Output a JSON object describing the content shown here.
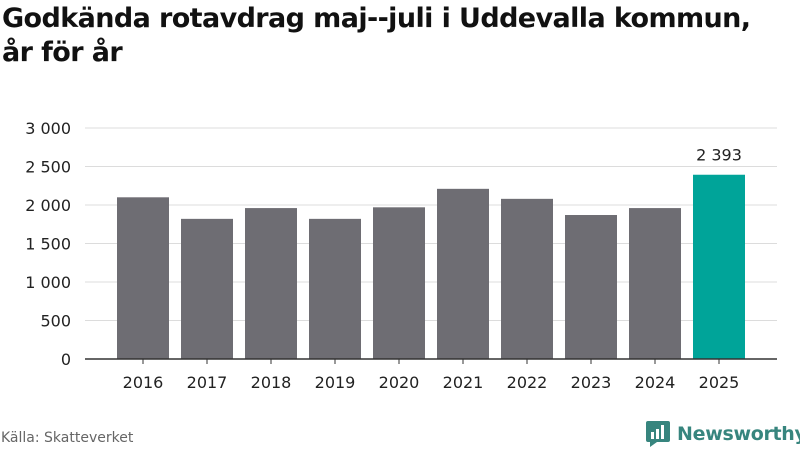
{
  "title_line1": "Godkända rotavdrag maj--juli i Uddevalla kommun,",
  "title_line2": "år för år",
  "source": "Källa: Skatteverket",
  "brand": {
    "name": "Newsworthy",
    "logo_icon": "newsworthy-logo-icon"
  },
  "colors": {
    "bar": "#6e6d73",
    "highlight": "#00a499",
    "grid": "#dcdcdc",
    "axis": "#333333"
  },
  "chart_data": {
    "type": "bar",
    "categories": [
      "2016",
      "2017",
      "2018",
      "2019",
      "2020",
      "2021",
      "2022",
      "2023",
      "2024",
      "2025"
    ],
    "values": [
      2100,
      1820,
      1960,
      1820,
      1970,
      2210,
      2080,
      1870,
      1960,
      2393
    ],
    "highlight_index": 9,
    "data_labels": [
      {
        "index": 9,
        "text": "2 393"
      }
    ],
    "yticks": [
      0,
      500,
      1000,
      1500,
      2000,
      2500,
      3000
    ],
    "ytick_labels": [
      "0",
      "500",
      "1 000",
      "1 500",
      "2 000",
      "2 500",
      "3 000"
    ],
    "ylim": [
      0,
      3000
    ],
    "grid": true,
    "xlabel": "",
    "ylabel": ""
  }
}
